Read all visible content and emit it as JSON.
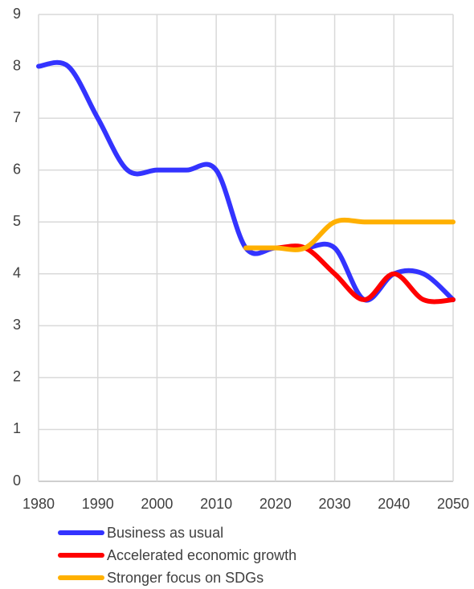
{
  "chart_data": {
    "type": "line",
    "x": [
      1980,
      1985,
      1990,
      1995,
      2000,
      2005,
      2010,
      2015,
      2020,
      2025,
      2030,
      2035,
      2040,
      2045,
      2050
    ],
    "series": [
      {
        "name": "Business as usual",
        "color": "#3333ff",
        "values": [
          8,
          8,
          7,
          6,
          6,
          6,
          6,
          4.5,
          4.5,
          4.5,
          4.5,
          3.5,
          4,
          4,
          3.5
        ]
      },
      {
        "name": "Accelerated economic growth",
        "color": "#ff0000",
        "values": [
          null,
          null,
          null,
          null,
          null,
          null,
          null,
          4.5,
          4.5,
          4.5,
          4,
          3.5,
          4,
          3.5,
          3.5
        ]
      },
      {
        "name": "Stronger focus on SDGs",
        "color": "#ffb000",
        "values": [
          null,
          null,
          null,
          null,
          null,
          null,
          null,
          4.5,
          4.5,
          4.5,
          5,
          5,
          5,
          5,
          5
        ]
      }
    ],
    "xlim": [
      1980,
      2050
    ],
    "xticks": [
      1980,
      1990,
      2000,
      2010,
      2020,
      2030,
      2040,
      2050
    ],
    "ylim": [
      0,
      9
    ],
    "yticks": [
      0,
      1,
      2,
      3,
      4,
      5,
      6,
      7,
      8,
      9
    ],
    "grid": true
  }
}
